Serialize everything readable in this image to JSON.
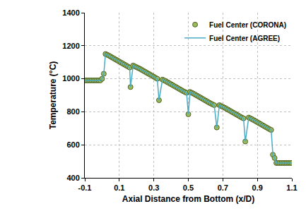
{
  "chart_data": {
    "type": "scatter",
    "xlabel": "Axial Distance from Bottom (x/D)",
    "ylabel": "Temperature (°C)",
    "x": [
      -0.1,
      -0.09,
      -0.08,
      -0.07,
      -0.06,
      -0.05,
      -0.04,
      -0.03,
      -0.02,
      -0.01,
      0.0,
      0.01,
      0.02,
      0.03,
      0.04,
      0.05,
      0.06,
      0.07,
      0.08,
      0.09,
      0.1,
      0.11,
      0.12,
      0.13,
      0.14,
      0.15,
      0.16,
      0.165,
      0.18,
      0.19,
      0.2,
      0.21,
      0.22,
      0.23,
      0.24,
      0.25,
      0.26,
      0.27,
      0.28,
      0.29,
      0.3,
      0.31,
      0.32,
      0.33,
      0.35,
      0.36,
      0.37,
      0.38,
      0.39,
      0.4,
      0.41,
      0.42,
      0.43,
      0.44,
      0.45,
      0.46,
      0.47,
      0.48,
      0.49,
      0.5,
      0.51,
      0.52,
      0.53,
      0.54,
      0.55,
      0.56,
      0.57,
      0.58,
      0.59,
      0.6,
      0.61,
      0.62,
      0.63,
      0.64,
      0.65,
      0.665,
      0.68,
      0.69,
      0.7,
      0.71,
      0.72,
      0.73,
      0.74,
      0.75,
      0.76,
      0.77,
      0.78,
      0.79,
      0.8,
      0.81,
      0.82,
      0.83,
      0.85,
      0.86,
      0.87,
      0.88,
      0.89,
      0.9,
      0.91,
      0.92,
      0.93,
      0.94,
      0.95,
      0.96,
      0.97,
      0.98,
      0.99,
      1.0,
      1.01,
      1.02,
      1.03,
      1.04,
      1.05,
      1.06,
      1.07,
      1.08,
      1.09,
      1.1
    ],
    "series": [
      {
        "name": "Fuel Center (CORONA)",
        "type": "scatter",
        "marker": "circle",
        "color": "#9bbb59",
        "values": [
          990,
          990,
          990,
          990,
          990,
          990,
          990,
          990,
          990,
          990,
          1000,
          1030,
          1150,
          1145,
          1140,
          1134,
          1128,
          1122,
          1116,
          1110,
          1104,
          1098,
          1092,
          1086,
          1080,
          1074,
          1068,
          950,
          1080,
          1075,
          1070,
          1065,
          1060,
          1054,
          1048,
          1042,
          1036,
          1030,
          1024,
          1018,
          1012,
          1006,
          1000,
          870,
          995,
          990,
          985,
          979,
          973,
          967,
          961,
          955,
          949,
          943,
          937,
          931,
          925,
          920,
          915,
          785,
          920,
          915,
          910,
          904,
          898,
          892,
          886,
          880,
          874,
          868,
          862,
          856,
          850,
          845,
          840,
          705,
          840,
          835,
          830,
          825,
          819,
          813,
          807,
          801,
          795,
          789,
          783,
          777,
          771,
          765,
          760,
          620,
          765,
          760,
          755,
          749,
          743,
          737,
          731,
          725,
          719,
          713,
          707,
          701,
          695,
          690,
          540,
          520,
          490,
          490,
          490,
          490,
          490,
          490,
          490,
          490,
          490,
          490
        ]
      },
      {
        "name": "Fuel Center (AGREE)",
        "type": "line",
        "line_style": "solid",
        "color": "#4bacc6",
        "values": [
          990,
          990,
          990,
          990,
          990,
          990,
          990,
          990,
          990,
          990,
          1000,
          1030,
          1150,
          1145,
          1140,
          1134,
          1128,
          1122,
          1116,
          1110,
          1104,
          1098,
          1092,
          1086,
          1080,
          1074,
          1068,
          950,
          1080,
          1075,
          1070,
          1065,
          1060,
          1054,
          1048,
          1042,
          1036,
          1030,
          1024,
          1018,
          1012,
          1006,
          1000,
          870,
          995,
          990,
          985,
          979,
          973,
          967,
          961,
          955,
          949,
          943,
          937,
          931,
          925,
          920,
          915,
          785,
          920,
          915,
          910,
          904,
          898,
          892,
          886,
          880,
          874,
          868,
          862,
          856,
          850,
          845,
          840,
          705,
          840,
          835,
          830,
          825,
          819,
          813,
          807,
          801,
          795,
          789,
          783,
          777,
          771,
          765,
          760,
          620,
          765,
          760,
          755,
          749,
          743,
          737,
          731,
          725,
          719,
          713,
          707,
          701,
          695,
          690,
          540,
          520,
          490,
          490,
          490,
          490,
          490,
          490,
          490,
          490,
          490,
          490
        ]
      }
    ],
    "xlim": [
      -0.1,
      1.1
    ],
    "xticks": [
      -0.1,
      0.1,
      0.3,
      0.5,
      0.7,
      0.9,
      1.1
    ],
    "ylim": [
      400,
      1400
    ],
    "yticks": [
      400,
      600,
      800,
      1000,
      1200,
      1400
    ],
    "grid": true,
    "legend": "top right"
  }
}
